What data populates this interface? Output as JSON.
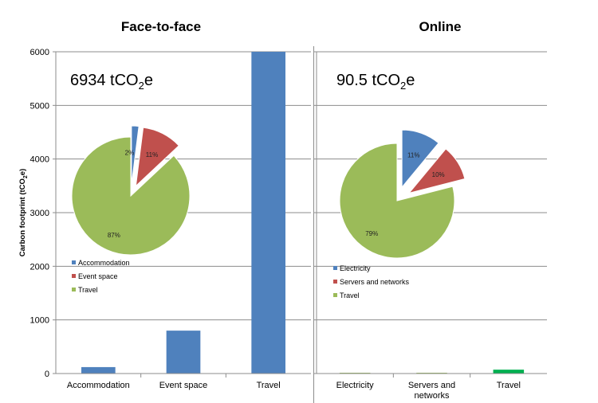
{
  "chart_data": [
    {
      "type": "bar",
      "title": "Face-to-face",
      "ylabel": "Carbon footprint (tCO",
      "ylabel_sub": "2",
      "ylabel_end": "e)",
      "ylim": [
        0,
        6000
      ],
      "yticks": [
        "0",
        "1000",
        "2000",
        "3000",
        "4000",
        "5000",
        "6000"
      ],
      "categories": [
        "Accommodation",
        "Event space",
        "Travel"
      ],
      "values": [
        120,
        800,
        6000
      ],
      "colors": [
        "#4f81bd",
        "#4f81bd",
        "#4f81bd"
      ],
      "total": {
        "value": "6934 tCO",
        "sub": "2",
        "end": "e"
      },
      "pie": {
        "type": "pie",
        "slices": [
          {
            "label": "Accommodation",
            "value": 2,
            "pct": "2%",
            "color": "#4f81bd",
            "exploded": true
          },
          {
            "label": "Event space",
            "value": 11,
            "pct": "11%",
            "color": "#c0504d",
            "exploded": true
          },
          {
            "label": "Travel",
            "value": 87,
            "pct": "87%",
            "color": "#9bbb59",
            "exploded": false
          }
        ],
        "legend": [
          "Accommodation",
          "Event space",
          "Travel"
        ]
      }
    },
    {
      "type": "bar",
      "title": "Online",
      "ylim": [
        0,
        6000
      ],
      "categories": [
        "Electricity",
        "Servers and networks",
        "Travel"
      ],
      "category_lines": [
        [
          "Electricity"
        ],
        [
          "Servers and",
          "networks"
        ],
        [
          "Travel"
        ]
      ],
      "values": [
        9,
        9,
        72
      ],
      "colors": [
        "#9bbb59",
        "#9bbb59",
        "#00b050"
      ],
      "total": {
        "value": "90.5 tCO",
        "sub": "2",
        "end": "e"
      },
      "pie": {
        "type": "pie",
        "slices": [
          {
            "label": "Electricity",
            "value": 11,
            "pct": "11%",
            "color": "#4f81bd",
            "exploded": true
          },
          {
            "label": "Servers and networks",
            "value": 10,
            "pct": "10%",
            "color": "#c0504d",
            "exploded": true
          },
          {
            "label": "Travel",
            "value": 79,
            "pct": "79%",
            "color": "#9bbb59",
            "exploded": false
          }
        ],
        "legend": [
          "Electricity",
          "Servers and networks",
          "Travel"
        ]
      }
    }
  ]
}
